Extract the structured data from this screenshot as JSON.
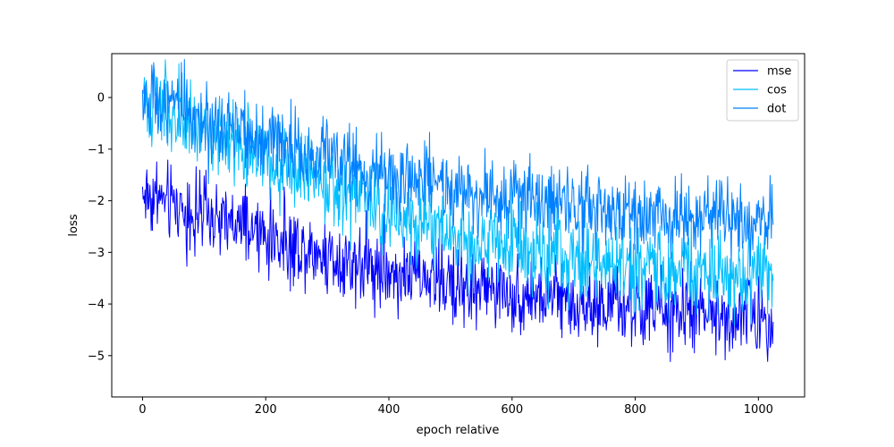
{
  "chart_data": {
    "type": "line",
    "title": "",
    "xlabel": "epoch relative",
    "ylabel": "loss",
    "xlim": [
      -50,
      1075
    ],
    "ylim": [
      -5.8,
      0.85
    ],
    "xticks": [
      0,
      200,
      400,
      600,
      800,
      1000
    ],
    "yticks": [
      0,
      -1,
      -2,
      -3,
      -4,
      -5
    ],
    "xtick_labels": [
      "0",
      "200",
      "400",
      "600",
      "800",
      "1000"
    ],
    "ytick_labels": [
      "0",
      "−1",
      "−2",
      "−3",
      "−4",
      "−5"
    ],
    "legend_position": "upper right",
    "grid": false,
    "n_points": 1025,
    "series": [
      {
        "name": "mse",
        "color": "#0000ff",
        "trend_x": [
          0,
          100,
          200,
          300,
          400,
          500,
          600,
          700,
          800,
          900,
          1024
        ],
        "trend_y": [
          -1.85,
          -2.3,
          -2.7,
          -3.05,
          -3.35,
          -3.6,
          -3.8,
          -3.95,
          -4.1,
          -4.2,
          -4.25
        ],
        "noise_band": 0.55
      },
      {
        "name": "cos",
        "color": "#00bfff",
        "trend_x": [
          0,
          100,
          200,
          300,
          400,
          500,
          600,
          700,
          800,
          900,
          1024
        ],
        "trend_y": [
          -0.05,
          -0.6,
          -1.15,
          -1.7,
          -2.25,
          -2.65,
          -2.95,
          -3.15,
          -3.3,
          -3.35,
          -3.4
        ],
        "noise_band": 0.6
      },
      {
        "name": "dot",
        "color": "#0080ff",
        "trend_x": [
          0,
          100,
          200,
          300,
          400,
          500,
          600,
          700,
          800,
          900,
          1024
        ],
        "trend_y": [
          -0.05,
          -0.45,
          -0.85,
          -1.2,
          -1.5,
          -1.75,
          -1.95,
          -2.1,
          -2.25,
          -2.35,
          -2.45
        ],
        "noise_band": 0.55
      }
    ]
  }
}
